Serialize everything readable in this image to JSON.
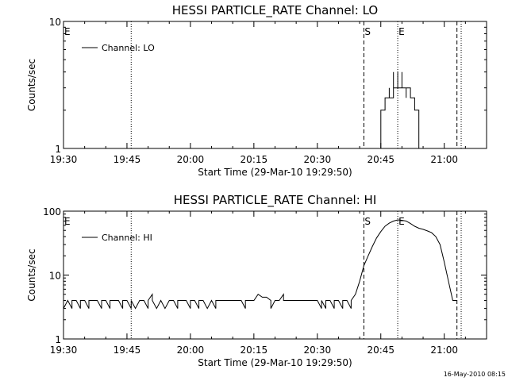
{
  "stamp": "16-May-2010 08:15",
  "chart_data": [
    {
      "type": "line",
      "title": "HESSI PARTICLE_RATE Channel: LO",
      "xlabel": "Start Time (29-Mar-10 19:29:50)",
      "ylabel": "Counts/sec",
      "yscale": "log",
      "ylim": [
        1,
        10
      ],
      "xlim": [
        "19:30",
        "21:10"
      ],
      "x_ticks": [
        "19:30",
        "19:45",
        "20:00",
        "20:15",
        "20:30",
        "20:45",
        "21:00"
      ],
      "y_ticks": [
        "1",
        "10"
      ],
      "legend": {
        "entries": [
          "Channel: LO"
        ],
        "position": "top-left"
      },
      "markers": [
        {
          "label": "E",
          "time": "19:30",
          "style": "none"
        },
        {
          "label": "",
          "time": "19:46",
          "style": "dotted"
        },
        {
          "label": "S",
          "time": "20:41",
          "style": "dashed"
        },
        {
          "label": "E",
          "time": "20:49",
          "style": "dotted"
        },
        {
          "label": "",
          "time": "21:03",
          "style": "dashed"
        },
        {
          "label": "",
          "time": "21:04",
          "style": "dotted"
        }
      ],
      "series": [
        {
          "values": [
            [
              "20:45",
              1
            ],
            [
              "20:45",
              2
            ],
            [
              "20:46",
              2
            ],
            [
              "20:46",
              2.5
            ],
            [
              "20:47",
              2.5
            ],
            [
              "20:47",
              3
            ],
            [
              "20:47",
              2.5
            ],
            [
              "20:48",
              2.5
            ],
            [
              "20:48",
              4
            ],
            [
              "20:48",
              3
            ],
            [
              "20:49",
              3
            ],
            [
              "20:49",
              4
            ],
            [
              "20:49",
              3
            ],
            [
              "20:50",
              3
            ],
            [
              "20:50",
              4
            ],
            [
              "20:50",
              3
            ],
            [
              "20:51",
              3
            ],
            [
              "20:51",
              2.5
            ],
            [
              "20:51",
              3
            ],
            [
              "20:52",
              3
            ],
            [
              "20:52",
              2.5
            ],
            [
              "20:53",
              2.5
            ],
            [
              "20:53",
              2
            ],
            [
              "20:53",
              2
            ],
            [
              "20:54",
              2
            ],
            [
              "20:54",
              1
            ]
          ]
        }
      ]
    },
    {
      "type": "line",
      "title": "HESSI PARTICLE_RATE Channel: HI",
      "xlabel": "Start Time (29-Mar-10 19:29:50)",
      "ylabel": "Counts/sec",
      "yscale": "log",
      "ylim": [
        1,
        100
      ],
      "xlim": [
        "19:30",
        "21:10"
      ],
      "x_ticks": [
        "19:30",
        "19:45",
        "20:00",
        "20:15",
        "20:30",
        "20:45",
        "21:00"
      ],
      "y_ticks": [
        "1",
        "10",
        "100"
      ],
      "legend": {
        "entries": [
          "Channel: HI"
        ],
        "position": "top-left"
      },
      "markers": [
        {
          "label": "E",
          "time": "19:30",
          "style": "none"
        },
        {
          "label": "",
          "time": "19:46",
          "style": "dotted"
        },
        {
          "label": "S",
          "time": "20:41",
          "style": "dashed"
        },
        {
          "label": "E",
          "time": "20:49",
          "style": "dotted"
        },
        {
          "label": "",
          "time": "21:03",
          "style": "dashed"
        },
        {
          "label": "",
          "time": "21:04",
          "style": "dotted"
        }
      ],
      "series": [
        {
          "values": [
            [
              "19:30",
              4
            ],
            [
              "19:30",
              3
            ],
            [
              "19:31",
              4
            ],
            [
              "19:32",
              3
            ],
            [
              "19:32",
              4
            ],
            [
              "19:33",
              4
            ],
            [
              "19:34",
              3
            ],
            [
              "19:34",
              4
            ],
            [
              "19:35",
              4
            ],
            [
              "19:36",
              3
            ],
            [
              "19:36",
              4
            ],
            [
              "19:37",
              4
            ],
            [
              "19:38",
              4
            ],
            [
              "19:39",
              3
            ],
            [
              "19:39",
              4
            ],
            [
              "19:40",
              4
            ],
            [
              "19:41",
              3
            ],
            [
              "19:41",
              4
            ],
            [
              "19:42",
              4
            ],
            [
              "19:43",
              4
            ],
            [
              "19:44",
              3
            ],
            [
              "19:44",
              4
            ],
            [
              "19:45",
              4
            ],
            [
              "19:46",
              3
            ],
            [
              "19:46",
              4
            ],
            [
              "19:47",
              3
            ],
            [
              "19:48",
              4
            ],
            [
              "19:49",
              4
            ],
            [
              "19:50",
              3
            ],
            [
              "19:50",
              4
            ],
            [
              "19:51",
              5
            ],
            [
              "19:51",
              4
            ],
            [
              "19:52",
              3
            ],
            [
              "19:53",
              4
            ],
            [
              "19:54",
              3
            ],
            [
              "19:55",
              4
            ],
            [
              "19:56",
              4
            ],
            [
              "19:57",
              3
            ],
            [
              "19:57",
              4
            ],
            [
              "19:58",
              4
            ],
            [
              "19:59",
              4
            ],
            [
              "20:00",
              3
            ],
            [
              "20:00",
              4
            ],
            [
              "20:01",
              4
            ],
            [
              "20:02",
              3
            ],
            [
              "20:02",
              4
            ],
            [
              "20:03",
              4
            ],
            [
              "20:04",
              3
            ],
            [
              "20:05",
              4
            ],
            [
              "20:06",
              3
            ],
            [
              "20:06",
              4
            ],
            [
              "20:07",
              4
            ],
            [
              "20:08",
              4
            ],
            [
              "20:09",
              4
            ],
            [
              "20:10",
              4
            ],
            [
              "20:11",
              4
            ],
            [
              "20:12",
              4
            ],
            [
              "20:13",
              3
            ],
            [
              "20:13",
              4
            ],
            [
              "20:14",
              4
            ],
            [
              "20:15",
              4
            ],
            [
              "20:16",
              5
            ],
            [
              "20:17",
              4.5
            ],
            [
              "20:18",
              4.5
            ],
            [
              "20:19",
              4
            ],
            [
              "20:19",
              3
            ],
            [
              "20:20",
              4
            ],
            [
              "20:21",
              4
            ],
            [
              "20:22",
              5
            ],
            [
              "20:22",
              4
            ],
            [
              "20:23",
              4
            ],
            [
              "20:24",
              4
            ],
            [
              "20:25",
              4
            ],
            [
              "20:26",
              4
            ],
            [
              "20:27",
              4
            ],
            [
              "20:28",
              4
            ],
            [
              "20:29",
              4
            ],
            [
              "20:30",
              4
            ],
            [
              "20:31",
              3
            ],
            [
              "20:31",
              4
            ],
            [
              "20:32",
              3
            ],
            [
              "20:32",
              4
            ],
            [
              "20:33",
              4
            ],
            [
              "20:34",
              3
            ],
            [
              "20:34",
              4
            ],
            [
              "20:35",
              4
            ],
            [
              "20:36",
              3
            ],
            [
              "20:36",
              4
            ],
            [
              "20:37",
              4
            ],
            [
              "20:38",
              3
            ],
            [
              "20:38",
              4
            ],
            [
              "20:39",
              5
            ],
            [
              "20:40",
              8
            ],
            [
              "20:41",
              14
            ],
            [
              "20:42",
              20
            ],
            [
              "20:43",
              28
            ],
            [
              "20:44",
              38
            ],
            [
              "20:45",
              48
            ],
            [
              "20:46",
              58
            ],
            [
              "20:47",
              65
            ],
            [
              "20:48",
              70
            ],
            [
              "20:49",
              73
            ],
            [
              "20:50",
              72
            ],
            [
              "20:51",
              70
            ],
            [
              "20:52",
              64
            ],
            [
              "20:53",
              58
            ],
            [
              "20:54",
              54
            ],
            [
              "20:55",
              52
            ],
            [
              "20:56",
              49
            ],
            [
              "20:57",
              46
            ],
            [
              "20:58",
              40
            ],
            [
              "20:59",
              30
            ],
            [
              "21:00",
              16
            ],
            [
              "21:01",
              8
            ],
            [
              "21:02",
              4
            ],
            [
              "21:03",
              4
            ]
          ]
        }
      ]
    }
  ]
}
